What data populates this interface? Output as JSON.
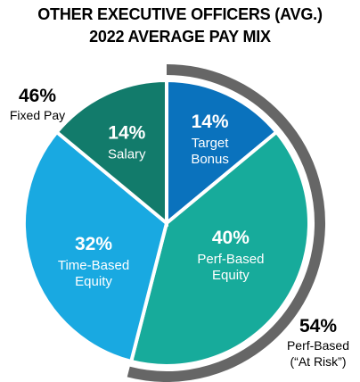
{
  "title_line1": "OTHER EXECUTIVE OFFICERS (AVG.)",
  "title_line2": "2022 AVERAGE PAY MIX",
  "chart_data": {
    "type": "pie",
    "title": "OTHER EXECUTIVE OFFICERS (AVG.) 2022 AVERAGE PAY MIX",
    "slices": [
      {
        "label_lines": [
          "Target",
          "Bonus"
        ],
        "value": 14,
        "value_text": "14%",
        "color": "#0a72bd"
      },
      {
        "label_lines": [
          "Perf-Based",
          "Equity"
        ],
        "value": 40,
        "value_text": "40%",
        "color": "#17ab9b"
      },
      {
        "label_lines": [
          "Time-Based",
          "Equity"
        ],
        "value": 32,
        "value_text": "32%",
        "color": "#19a9e1"
      },
      {
        "label_lines": [
          "Salary"
        ],
        "value": 14,
        "value_text": "14%",
        "color": "#127b6b"
      }
    ],
    "groups": [
      {
        "value_text": "46%",
        "label_lines": [
          "Fixed Pay"
        ]
      },
      {
        "value_text": "54%",
        "label_lines": [
          "Perf-Based",
          "(“At Risk”)"
        ],
        "arc_color": "#666666"
      }
    ]
  }
}
